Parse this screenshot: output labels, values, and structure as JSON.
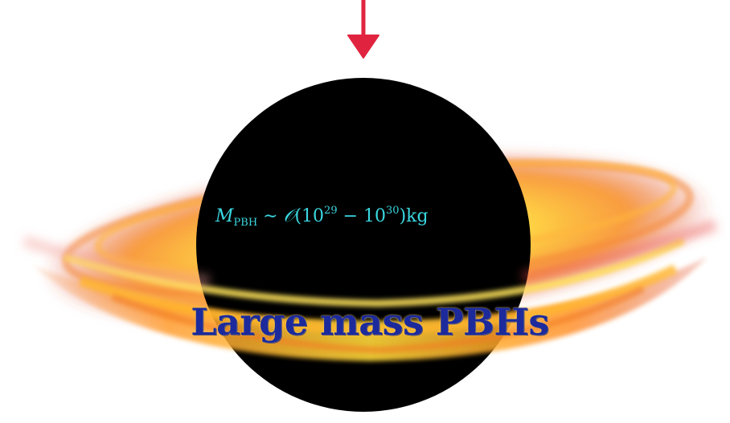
{
  "arrow": {
    "icon": "down-arrow-icon",
    "color": "#e0243f"
  },
  "black_hole": {
    "icon": "black-hole-illustration",
    "disk_colors": [
      "#ffe14a",
      "#ffb21f",
      "#f26a1b",
      "#d9382a"
    ]
  },
  "formula": {
    "symbol": "M",
    "subscript": "PBH",
    "relation": " ∼ ",
    "order_symbol": "𝒪",
    "open": "(10",
    "exp1": "29",
    "minus": " − 10",
    "exp2": "30",
    "close": ")kg"
  },
  "title": "Large mass PBHs",
  "colors": {
    "formula": "#3ad7e0",
    "title": "#1c2a9c"
  }
}
